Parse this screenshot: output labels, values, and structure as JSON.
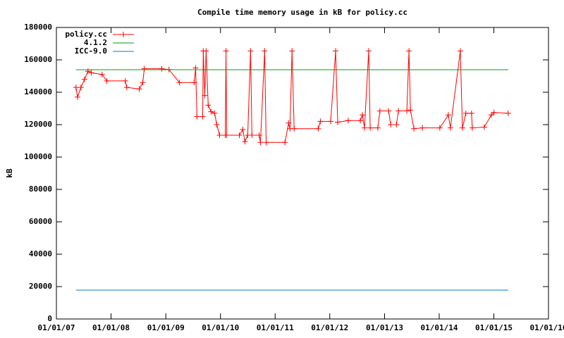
{
  "chart_data": {
    "type": "line",
    "title": "Compile time memory usage in kB for policy.cc",
    "y_label": "kB",
    "xlim": [
      "2007-01-01",
      "2016-01-01"
    ],
    "xticks": [
      {
        "value": "2007-01-01",
        "label": "01/01/07"
      },
      {
        "value": "2008-01-01",
        "label": "01/01/08"
      },
      {
        "value": "2009-01-01",
        "label": "01/01/09"
      },
      {
        "value": "2010-01-01",
        "label": "01/01/10"
      },
      {
        "value": "2011-01-01",
        "label": "01/01/11"
      },
      {
        "value": "2012-01-01",
        "label": "01/01/12"
      },
      {
        "value": "2013-01-01",
        "label": "01/01/13"
      },
      {
        "value": "2014-01-01",
        "label": "01/01/14"
      },
      {
        "value": "2015-01-01",
        "label": "01/01/15"
      },
      {
        "value": "2016-01-01",
        "label": "01/01/16"
      }
    ],
    "ylim": [
      0,
      180000
    ],
    "yticks": [
      0,
      20000,
      40000,
      60000,
      80000,
      100000,
      120000,
      140000,
      160000,
      180000
    ],
    "legend": "top-left",
    "series": [
      {
        "name": "policy.cc",
        "color": "#ff0000",
        "markers": true,
        "x": [
          "2007-05-12",
          "2007-05-22",
          "2007-06-14",
          "2007-07-08",
          "2007-07-31",
          "2007-08-23",
          "2007-11-02",
          "2007-12-04",
          "2008-04-05",
          "2008-04-15",
          "2008-07-08",
          "2008-07-31",
          "2008-08-10",
          "2008-12-05",
          "2009-01-22",
          "2009-04-02",
          "2009-07-09",
          "2009-07-19",
          "2009-07-28",
          "2009-09-04",
          "2009-09-08",
          "2009-09-18",
          "2009-09-27",
          "2009-10-11",
          "2009-10-30",
          "2009-11-23",
          "2009-12-07",
          "2009-12-26",
          "2010-02-02",
          "2010-02-07",
          "2010-02-11",
          "2010-05-07",
          "2010-05-30",
          "2010-06-13",
          "2010-07-02",
          "2010-07-21",
          "2010-07-30",
          "2010-09-16",
          "2010-09-25",
          "2010-10-23",
          "2010-11-02",
          "2011-03-08",
          "2011-04-01",
          "2011-04-10",
          "2011-04-24",
          "2011-05-08",
          "2011-10-16",
          "2011-10-30",
          "2012-01-07",
          "2012-02-09",
          "2012-02-23",
          "2012-05-03",
          "2012-07-23",
          "2012-08-06",
          "2012-08-20",
          "2012-09-17",
          "2012-09-27",
          "2012-11-17",
          "2012-12-01",
          "2013-01-28",
          "2013-02-11",
          "2013-03-21",
          "2013-04-04",
          "2013-05-30",
          "2013-06-13",
          "2013-06-23",
          "2013-07-16",
          "2013-09-11",
          "2014-01-05",
          "2014-03-03",
          "2014-03-17",
          "2014-05-22",
          "2014-06-05",
          "2014-06-28",
          "2014-08-05",
          "2014-08-10",
          "2014-10-29",
          "2014-12-15",
          "2015-01-02",
          "2015-04-07"
        ],
        "values": [
          143000,
          137000,
          143000,
          148000,
          153000,
          152000,
          151000,
          147000,
          147000,
          143000,
          142000,
          146000,
          154500,
          154500,
          154000,
          146000,
          146000,
          155000,
          125000,
          125000,
          165500,
          138000,
          165500,
          132000,
          128000,
          127000,
          120000,
          113500,
          113500,
          165500,
          113500,
          113500,
          117000,
          109500,
          113500,
          165500,
          113500,
          113500,
          109000,
          165500,
          109000,
          109000,
          121000,
          117500,
          165500,
          117500,
          117500,
          122000,
          122000,
          165500,
          121500,
          122500,
          122500,
          126000,
          118000,
          165500,
          118000,
          118000,
          128500,
          128500,
          120000,
          120000,
          128500,
          128500,
          165500,
          129000,
          117500,
          118000,
          118000,
          126000,
          118000,
          165500,
          118000,
          127000,
          127000,
          118000,
          118500,
          126000,
          127500,
          127000
        ]
      },
      {
        "name": "4.1.2",
        "color": "#00a000",
        "markers": false,
        "x": [
          "2007-05-12",
          "2015-04-07"
        ],
        "values": [
          153900,
          153900
        ]
      },
      {
        "name": "ICC-9.0",
        "color": "#0080c0",
        "markers": false,
        "x": [
          "2007-05-12",
          "2015-04-07"
        ],
        "values": [
          17800,
          17800
        ]
      }
    ]
  }
}
